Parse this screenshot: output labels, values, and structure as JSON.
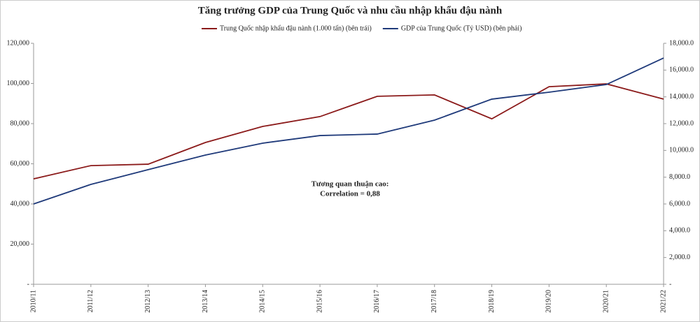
{
  "chart_data": {
    "type": "line",
    "title": "Tăng trưởng GDP của Trung Quốc và nhu cầu nhập khẩu đậu nành",
    "categories": [
      "2010/11",
      "2011/12",
      "2012/13",
      "2013/14",
      "2014/15",
      "2015/16",
      "2016/17",
      "2017/18",
      "2018/19",
      "2019/20",
      "2020/21",
      "2021/22"
    ],
    "series": [
      {
        "name": "Trung Quốc nhập khẩu đậu nành (1.000 tấn) (bên trái)",
        "color": "#8b1a1a",
        "values": [
          52500,
          59100,
          59800,
          70600,
          78600,
          83500,
          93600,
          94300,
          82400,
          98400,
          99800,
          92200
        ]
      },
      {
        "name": "GDP của Trung Quốc (Tỷ USD) (bên phải)",
        "color": "#1f3a7a",
        "axis": "y2",
        "values": [
          6000,
          7460,
          8560,
          9650,
          10540,
          11110,
          11220,
          12260,
          13830,
          14350,
          14920,
          16900
        ]
      }
    ],
    "ylim": [
      0,
      120000
    ],
    "yticks": [
      {
        "value": 0,
        "label": "-"
      },
      {
        "value": 20000,
        "label": "20,000"
      },
      {
        "value": 40000,
        "label": "40,000"
      },
      {
        "value": 60000,
        "label": "60,000"
      },
      {
        "value": 80000,
        "label": "80,000"
      },
      {
        "value": 100000,
        "label": "100,000"
      },
      {
        "value": 120000,
        "label": "120,000"
      }
    ],
    "y2lim": [
      0,
      18000
    ],
    "y2ticks": [
      {
        "value": 0,
        "label": "-"
      },
      {
        "value": 2000,
        "label": "2,000.0"
      },
      {
        "value": 4000,
        "label": "4,000.0"
      },
      {
        "value": 6000,
        "label": "6,000.0"
      },
      {
        "value": 8000,
        "label": "8,000.0"
      },
      {
        "value": 10000,
        "label": "10,000.0"
      },
      {
        "value": 12000,
        "label": "12,000.0"
      },
      {
        "value": 14000,
        "label": "14,000.0"
      },
      {
        "value": 16000,
        "label": "16,000.0"
      },
      {
        "value": 18000,
        "label": "18,000.0"
      }
    ],
    "annotations": [
      "Tương quan thuận cao:",
      "Correlation = 0,88"
    ]
  }
}
